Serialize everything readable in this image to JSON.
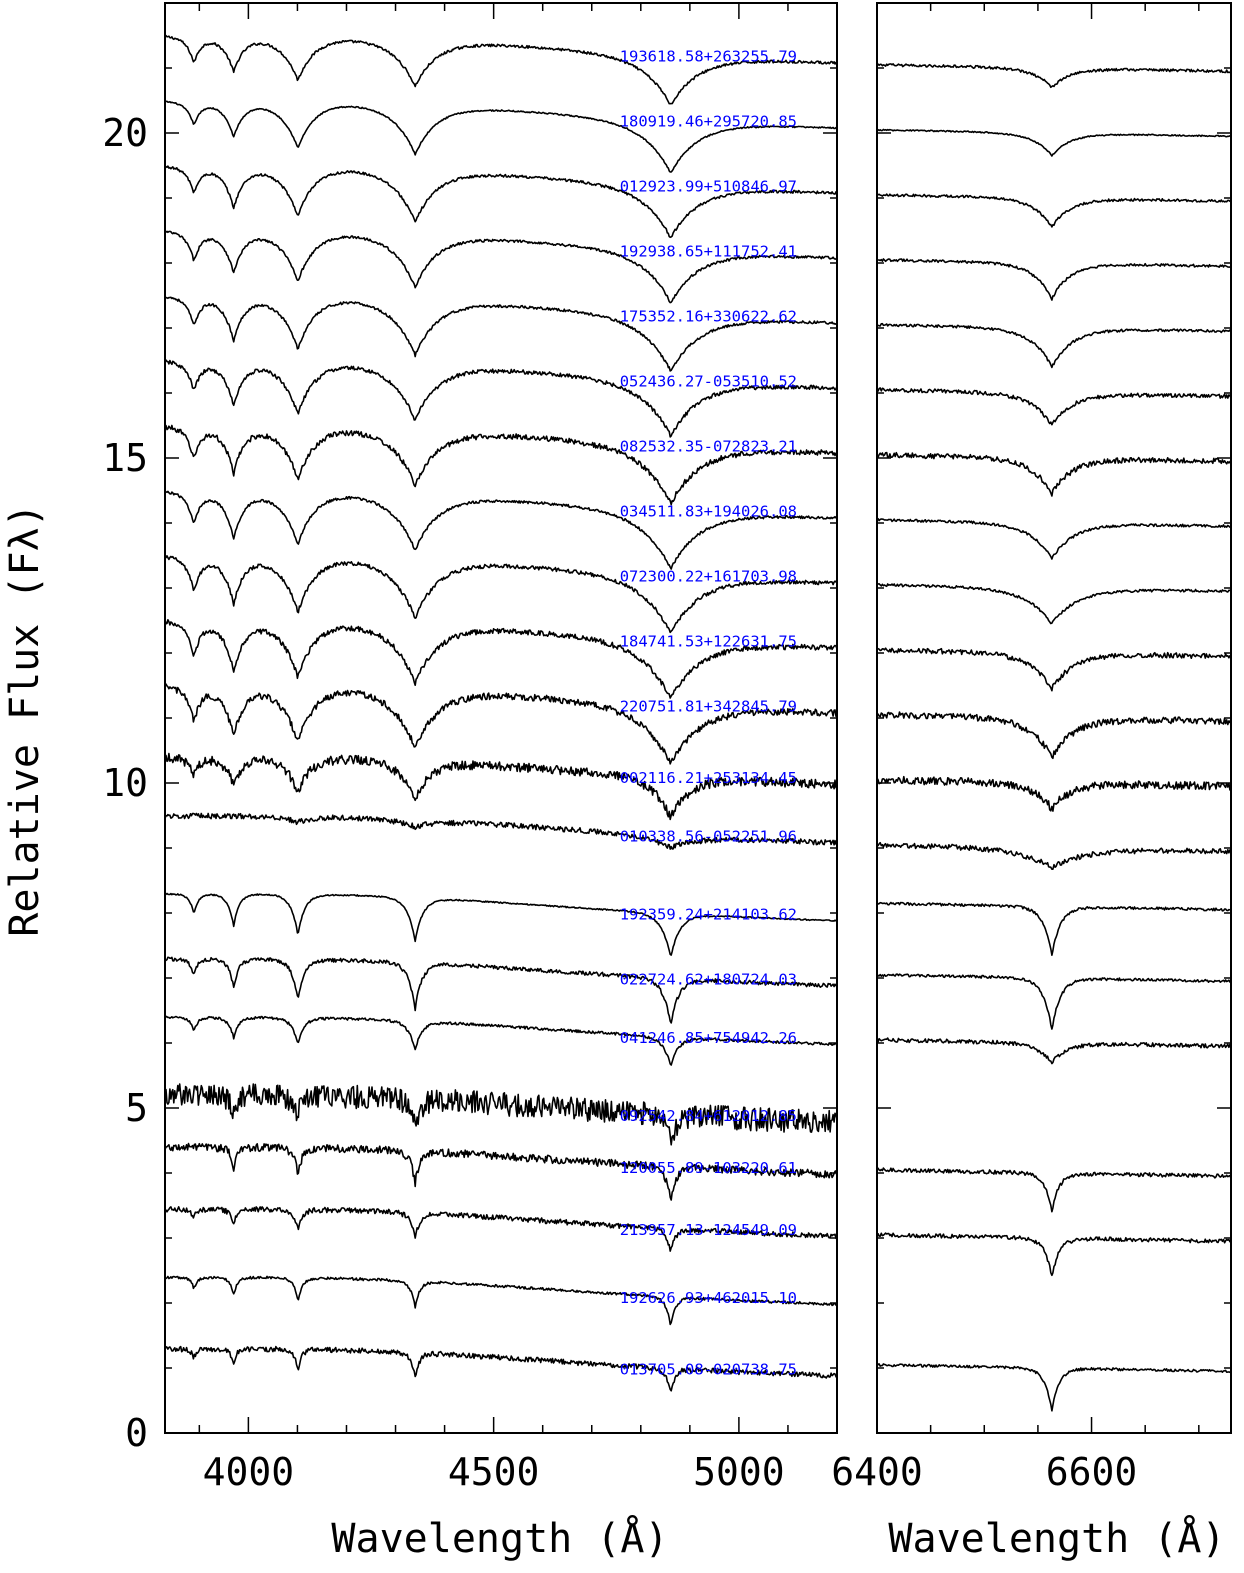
{
  "chart_data": [
    {
      "type": "line",
      "panel": "blue",
      "xlabel": "Wavelength (Å)",
      "ylabel": "Relative Flux (Fλ)",
      "xlim": [
        3830,
        5200
      ],
      "ylim": [
        0,
        22
      ],
      "x_ticks": [
        4000,
        4500,
        5000
      ],
      "y_ticks": [
        0,
        5,
        10,
        15,
        20
      ],
      "series": [
        {
          "name": "193618.58+263255.79",
          "continuum": 21.3,
          "lines": [
            {
              "x": 4861,
              "depth": 0.85,
              "width": 90
            },
            {
              "x": 4340,
              "depth": 0.8,
              "width": 70
            },
            {
              "x": 4101,
              "depth": 0.75,
              "width": 55
            },
            {
              "x": 3970,
              "depth": 0.6,
              "width": 35
            },
            {
              "x": 3889,
              "depth": 0.45,
              "width": 25
            }
          ],
          "noise": 0.02
        },
        {
          "name": "180919.46+295720.85",
          "continuum": 20.3,
          "lines": [
            {
              "x": 4861,
              "depth": 0.9,
              "width": 90
            },
            {
              "x": 4340,
              "depth": 0.85,
              "width": 70
            },
            {
              "x": 4101,
              "depth": 0.8,
              "width": 55
            },
            {
              "x": 3970,
              "depth": 0.6,
              "width": 35
            },
            {
              "x": 3889,
              "depth": 0.4,
              "width": 25
            }
          ],
          "noise": 0.01
        },
        {
          "name": "012923.99+510846.97",
          "continuum": 19.3,
          "lines": [
            {
              "x": 4861,
              "depth": 0.9,
              "width": 90
            },
            {
              "x": 4340,
              "depth": 0.9,
              "width": 70
            },
            {
              "x": 4101,
              "depth": 0.85,
              "width": 55
            },
            {
              "x": 3970,
              "depth": 0.7,
              "width": 35
            },
            {
              "x": 3889,
              "depth": 0.45,
              "width": 25
            }
          ],
          "noise": 0.02
        },
        {
          "name": "192938.65+111752.41",
          "continuum": 18.3,
          "lines": [
            {
              "x": 4861,
              "depth": 0.9,
              "width": 90
            },
            {
              "x": 4340,
              "depth": 0.9,
              "width": 70
            },
            {
              "x": 4101,
              "depth": 0.85,
              "width": 55
            },
            {
              "x": 3970,
              "depth": 0.7,
              "width": 35
            },
            {
              "x": 3889,
              "depth": 0.5,
              "width": 25
            }
          ],
          "noise": 0.02
        },
        {
          "name": "175352.16+330622.62",
          "continuum": 17.3,
          "lines": [
            {
              "x": 4861,
              "depth": 0.95,
              "width": 95
            },
            {
              "x": 4340,
              "depth": 0.95,
              "width": 75
            },
            {
              "x": 4101,
              "depth": 0.9,
              "width": 55
            },
            {
              "x": 3970,
              "depth": 0.75,
              "width": 35
            },
            {
              "x": 3889,
              "depth": 0.5,
              "width": 25
            }
          ],
          "noise": 0.02
        },
        {
          "name": "052436.27-053510.52",
          "continuum": 16.3,
          "lines": [
            {
              "x": 4861,
              "depth": 0.95,
              "width": 95
            },
            {
              "x": 4340,
              "depth": 0.95,
              "width": 75
            },
            {
              "x": 4101,
              "depth": 0.9,
              "width": 55
            },
            {
              "x": 3970,
              "depth": 0.75,
              "width": 35
            },
            {
              "x": 3889,
              "depth": 0.5,
              "width": 25
            }
          ],
          "noise": 0.03
        },
        {
          "name": "082532.35-072823.21",
          "continuum": 15.3,
          "lines": [
            {
              "x": 4861,
              "depth": 1.0,
              "width": 95
            },
            {
              "x": 4340,
              "depth": 0.95,
              "width": 75
            },
            {
              "x": 4101,
              "depth": 0.9,
              "width": 55
            },
            {
              "x": 3970,
              "depth": 0.8,
              "width": 35
            },
            {
              "x": 3889,
              "depth": 0.55,
              "width": 25
            }
          ],
          "noise": 0.04
        },
        {
          "name": "034511.83+194026.08",
          "continuum": 14.3,
          "lines": [
            {
              "x": 4861,
              "depth": 1.0,
              "width": 95
            },
            {
              "x": 4340,
              "depth": 0.95,
              "width": 75
            },
            {
              "x": 4101,
              "depth": 0.9,
              "width": 55
            },
            {
              "x": 3970,
              "depth": 0.8,
              "width": 35
            },
            {
              "x": 3889,
              "depth": 0.55,
              "width": 25
            }
          ],
          "noise": 0.02
        },
        {
          "name": "072300.22+161703.98",
          "continuum": 13.3,
          "lines": [
            {
              "x": 4861,
              "depth": 1.0,
              "width": 95
            },
            {
              "x": 4340,
              "depth": 1.0,
              "width": 75
            },
            {
              "x": 4101,
              "depth": 0.95,
              "width": 55
            },
            {
              "x": 3970,
              "depth": 0.8,
              "width": 35
            },
            {
              "x": 3889,
              "depth": 0.6,
              "width": 25
            }
          ],
          "noise": 0.03
        },
        {
          "name": "184741.53+122631.75",
          "continuum": 12.3,
          "lines": [
            {
              "x": 4861,
              "depth": 1.0,
              "width": 95
            },
            {
              "x": 4340,
              "depth": 1.0,
              "width": 75
            },
            {
              "x": 4101,
              "depth": 0.95,
              "width": 55
            },
            {
              "x": 3970,
              "depth": 0.85,
              "width": 35
            },
            {
              "x": 3889,
              "depth": 0.6,
              "width": 25
            }
          ],
          "noise": 0.04
        },
        {
          "name": "220751.81+342845.79",
          "continuum": 11.3,
          "lines": [
            {
              "x": 4861,
              "depth": 1.0,
              "width": 95
            },
            {
              "x": 4340,
              "depth": 1.0,
              "width": 75
            },
            {
              "x": 4101,
              "depth": 0.95,
              "width": 55
            },
            {
              "x": 3970,
              "depth": 0.85,
              "width": 35
            },
            {
              "x": 3889,
              "depth": 0.6,
              "width": 25
            }
          ],
          "noise": 0.05
        },
        {
          "name": "002116.21+253134.45",
          "continuum": 10.2,
          "lines": [
            {
              "x": 4861,
              "depth": 0.7,
              "width": 60
            },
            {
              "x": 4340,
              "depth": 0.65,
              "width": 50
            },
            {
              "x": 4101,
              "depth": 0.6,
              "width": 40
            },
            {
              "x": 3970,
              "depth": 0.45,
              "width": 30
            },
            {
              "x": 3889,
              "depth": 0.3,
              "width": 20
            }
          ],
          "noise": 0.07
        },
        {
          "name": "010338.56-052251.96",
          "continuum": 9.3,
          "lines": [
            {
              "x": 4861,
              "depth": 0.2,
              "width": 90
            },
            {
              "x": 4340,
              "depth": 0.12,
              "width": 70
            },
            {
              "x": 4101,
              "depth": 0.1,
              "width": 50
            }
          ],
          "noise": 0.04
        },
        {
          "name": "192359.24+214103.62",
          "continuum": 8.1,
          "lines": [
            {
              "x": 4861,
              "depth": 0.75,
              "width": 30
            },
            {
              "x": 4340,
              "depth": 0.75,
              "width": 25
            },
            {
              "x": 4101,
              "depth": 0.7,
              "width": 22
            },
            {
              "x": 3970,
              "depth": 0.55,
              "width": 18
            },
            {
              "x": 3889,
              "depth": 0.35,
              "width": 14
            }
          ],
          "noise": 0.01
        },
        {
          "name": "022724.62+180724.03",
          "continuum": 7.1,
          "lines": [
            {
              "x": 4861,
              "depth": 0.8,
              "width": 25
            },
            {
              "x": 4340,
              "depth": 0.8,
              "width": 22
            },
            {
              "x": 4101,
              "depth": 0.7,
              "width": 20
            },
            {
              "x": 3970,
              "depth": 0.5,
              "width": 16
            },
            {
              "x": 3889,
              "depth": 0.3,
              "width": 12
            }
          ],
          "noise": 0.03
        },
        {
          "name": "041246.85+754942.26",
          "continuum": 6.2,
          "lines": [
            {
              "x": 4861,
              "depth": 0.5,
              "width": 25
            },
            {
              "x": 4340,
              "depth": 0.5,
              "width": 22
            },
            {
              "x": 4101,
              "depth": 0.45,
              "width": 20
            },
            {
              "x": 3970,
              "depth": 0.35,
              "width": 16
            },
            {
              "x": 3889,
              "depth": 0.25,
              "width": 12
            }
          ],
          "noise": 0.02
        },
        {
          "name": "092542.84+612012.85",
          "continuum": 5.0,
          "lines": [
            {
              "x": 4861,
              "depth": 0.4,
              "width": 20
            },
            {
              "x": 4340,
              "depth": 0.4,
              "width": 18
            },
            {
              "x": 4101,
              "depth": 0.35,
              "width": 16
            },
            {
              "x": 3970,
              "depth": 0.25,
              "width": 14
            }
          ],
          "noise": 0.18
        },
        {
          "name": "120055.89-103220.61",
          "continuum": 4.2,
          "lines": [
            {
              "x": 4861,
              "depth": 0.55,
              "width": 18
            },
            {
              "x": 4340,
              "depth": 0.55,
              "width": 16
            },
            {
              "x": 4101,
              "depth": 0.45,
              "width": 15
            },
            {
              "x": 3970,
              "depth": 0.35,
              "width": 12
            }
          ],
          "noise": 0.06
        },
        {
          "name": "213957.13-124549.09",
          "continuum": 3.25,
          "lines": [
            {
              "x": 4861,
              "depth": 0.4,
              "width": 16
            },
            {
              "x": 4340,
              "depth": 0.45,
              "width": 15
            },
            {
              "x": 4101,
              "depth": 0.35,
              "width": 14
            },
            {
              "x": 3970,
              "depth": 0.25,
              "width": 12
            },
            {
              "x": 3889,
              "depth": 0.15,
              "width": 10
            }
          ],
          "noise": 0.04
        },
        {
          "name": "192626.93+462015.10",
          "continuum": 2.2,
          "lines": [
            {
              "x": 4861,
              "depth": 0.5,
              "width": 16
            },
            {
              "x": 4340,
              "depth": 0.45,
              "width": 15
            },
            {
              "x": 4101,
              "depth": 0.4,
              "width": 14
            },
            {
              "x": 3970,
              "depth": 0.3,
              "width": 12
            },
            {
              "x": 3889,
              "depth": 0.2,
              "width": 10
            }
          ],
          "noise": 0.02
        },
        {
          "name": "013705.08-020738.75",
          "continuum": 1.1,
          "lines": [
            {
              "x": 4861,
              "depth": 0.45,
              "width": 14
            },
            {
              "x": 4340,
              "depth": 0.45,
              "width": 13
            },
            {
              "x": 4101,
              "depth": 0.35,
              "width": 12
            },
            {
              "x": 3970,
              "depth": 0.25,
              "width": 10
            },
            {
              "x": 3889,
              "depth": 0.15,
              "width": 9
            }
          ],
          "noise": 0.04
        }
      ]
    },
    {
      "type": "line",
      "panel": "red",
      "xlabel": "Wavelength (Å)",
      "xlim": [
        6400,
        6730
      ],
      "ylim": [
        0,
        22
      ],
      "x_ticks": [
        6400,
        6600
      ],
      "series": [
        {
          "name": "193618.58+263255.79",
          "continuum": 21.0,
          "halpha_depth": 0.3,
          "halpha_width": 25,
          "noise": 0.02
        },
        {
          "name": "180919.46+295720.85",
          "continuum": 20.0,
          "halpha_depth": 0.35,
          "halpha_width": 25,
          "noise": 0.01
        },
        {
          "name": "012923.99+510846.97",
          "continuum": 19.0,
          "halpha_depth": 0.45,
          "halpha_width": 25,
          "noise": 0.02
        },
        {
          "name": "192938.65+111752.41",
          "continuum": 18.0,
          "halpha_depth": 0.55,
          "halpha_width": 25,
          "noise": 0.02
        },
        {
          "name": "175352.16+330622.62",
          "continuum": 17.0,
          "halpha_depth": 0.6,
          "halpha_width": 28,
          "noise": 0.02
        },
        {
          "name": "052436.27-053510.52",
          "continuum": 16.0,
          "halpha_depth": 0.5,
          "halpha_width": 28,
          "noise": 0.03
        },
        {
          "name": "082532.35-072823.21",
          "continuum": 15.0,
          "halpha_depth": 0.55,
          "halpha_width": 28,
          "noise": 0.04
        },
        {
          "name": "034511.83+194026.08",
          "continuum": 14.0,
          "halpha_depth": 0.55,
          "halpha_width": 30,
          "noise": 0.02
        },
        {
          "name": "072300.22+161703.98",
          "continuum": 13.0,
          "halpha_depth": 0.55,
          "halpha_width": 35,
          "noise": 0.02
        },
        {
          "name": "184741.53+122631.75",
          "continuum": 12.0,
          "halpha_depth": 0.55,
          "halpha_width": 30,
          "noise": 0.04
        },
        {
          "name": "220751.81+342845.79",
          "continuum": 11.0,
          "halpha_depth": 0.6,
          "halpha_width": 30,
          "noise": 0.05
        },
        {
          "name": "002116.21+253134.45",
          "continuum": 10.0,
          "halpha_depth": 0.4,
          "halpha_width": 25,
          "noise": 0.06
        },
        {
          "name": "010338.56-052251.96",
          "continuum": 9.0,
          "halpha_depth": 0.3,
          "halpha_width": 45,
          "noise": 0.04
        },
        {
          "name": "192359.24+214103.62",
          "continuum": 8.1,
          "halpha_depth": 0.75,
          "halpha_width": 12,
          "noise": 0.02
        },
        {
          "name": "022724.62+180724.03",
          "continuum": 7.0,
          "halpha_depth": 0.8,
          "halpha_width": 12,
          "noise": 0.02
        },
        {
          "name": "041246.85+754942.26",
          "continuum": 6.0,
          "halpha_depth": 0.3,
          "halpha_width": 20,
          "noise": 0.03
        },
        {
          "name": "120055.89-103220.61",
          "continuum": 4.0,
          "halpha_depth": 0.6,
          "halpha_width": 10,
          "noise": 0.03
        },
        {
          "name": "213957.13-124549.09",
          "continuum": 3.0,
          "halpha_depth": 0.6,
          "halpha_width": 10,
          "noise": 0.03
        },
        {
          "name": "013705.08-020738.75",
          "continuum": 1.0,
          "halpha_depth": 0.65,
          "halpha_width": 10,
          "noise": 0.02
        }
      ]
    }
  ]
}
